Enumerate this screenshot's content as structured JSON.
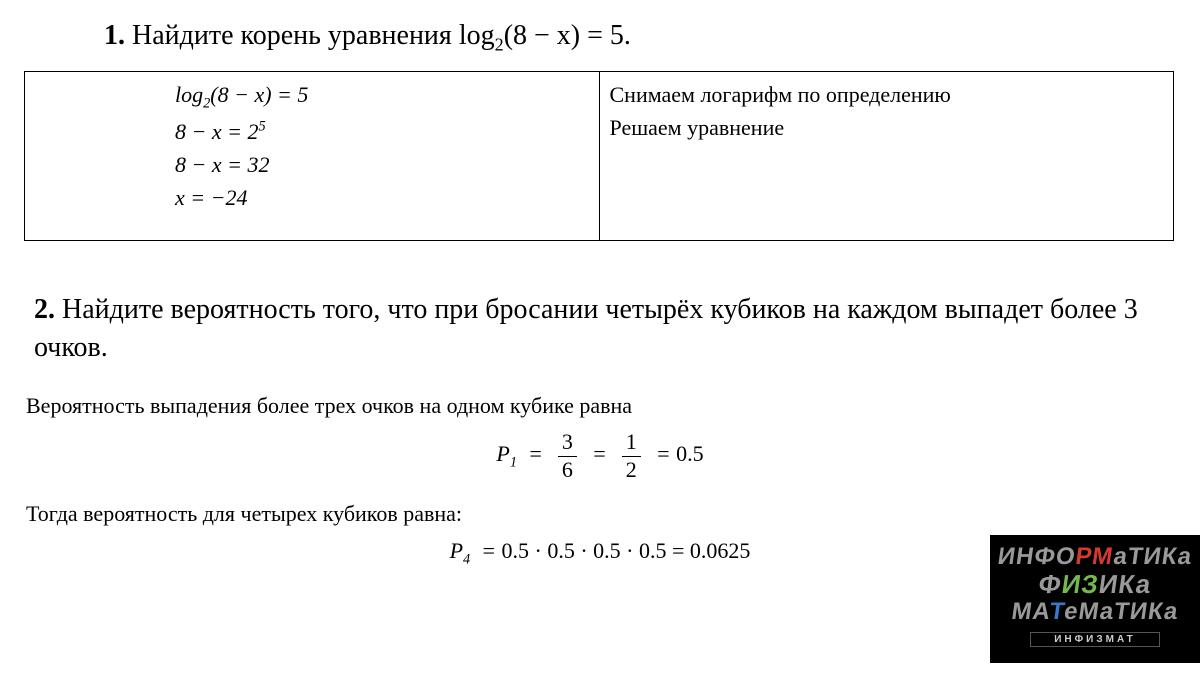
{
  "problem1": {
    "number": "1.",
    "text_before": " Найдите корень уравнения ",
    "math": "log",
    "math_sub": "2",
    "math_arg": "(8 − x) = 5",
    "period": ".",
    "solution_left": [
      "log<sub>2</sub>(8 − x) = 5",
      "8 − x = 2<sup>5</sup>",
      "8 − x = 32",
      "x = −24"
    ],
    "solution_right": [
      "Снимаем логарифм по определению",
      "Решаем уравнение"
    ]
  },
  "problem2": {
    "number": "2.",
    "text": " Найдите вероятность того, что при бросании четырёх кубиков на каждом выпадет более 3 очков.",
    "line1": "Вероятность выпадения более трех очков на одном кубике равна",
    "eq1_lhs": "P",
    "eq1_sub": "1",
    "eq1_frac1_n": "3",
    "eq1_frac1_d": "6",
    "eq1_frac2_n": "1",
    "eq1_frac2_d": "2",
    "eq1_rhs": "0.5",
    "line2": "Тогда вероятность для четырех кубиков равна:",
    "eq2_lhs": "P",
    "eq2_sub": "4",
    "eq2_rhs": "0.5 · 0.5 · 0.5 · 0.5 = 0.0625"
  },
  "banner": {
    "word1_pre": "ИНФО",
    "word1_hl": "РМ",
    "word1_post": "аТИКа",
    "word2_pre": "Ф",
    "word2_hl": "ИЗ",
    "word2_post": "ИКа",
    "word3_pre": "МА",
    "word3_hl": "Т",
    "word3_post": "еМаТИКа",
    "sub": "ИНФИЗМАТ"
  },
  "colors": {
    "background": "#ffffff",
    "text": "#000000",
    "border": "#000000",
    "banner_bg": "#000000",
    "banner_red": "#d53a2f",
    "banner_green": "#75b84f",
    "banner_blue": "#3a79c9",
    "banner_gray": "#999999"
  },
  "typography": {
    "heading_fontsize": 28,
    "body_fontsize": 22,
    "font_family": "Georgia / Times serif"
  }
}
